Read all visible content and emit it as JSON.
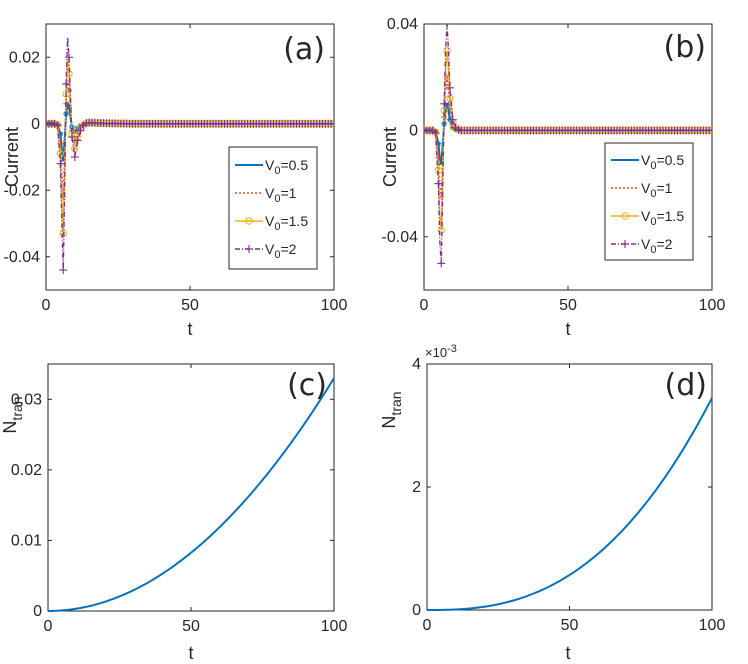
{
  "chart_data": [
    {
      "panel": "(a)",
      "type": "line",
      "xlabel": "t",
      "ylabel": "Current",
      "xlim": [
        0,
        100
      ],
      "ylim": [
        -0.05,
        0.03
      ],
      "xticks": [
        0,
        50,
        100
      ],
      "yticks": [
        -0.04,
        -0.02,
        0,
        0.02
      ],
      "xtick_labels": [
        "0",
        "50",
        "100"
      ],
      "ytick_labels": [
        "-0.04",
        "-0.02",
        "0",
        "0.02"
      ],
      "legend": {
        "position": "right",
        "entries": [
          {
            "prefix": "V",
            "sub": "0",
            "suffix": "=0.5"
          },
          {
            "prefix": "V",
            "sub": "0",
            "suffix": "=1"
          },
          {
            "prefix": "V",
            "sub": "0",
            "suffix": "=1.5"
          },
          {
            "prefix": "V",
            "sub": "0",
            "suffix": "=2"
          }
        ]
      },
      "series": [
        {
          "name": "V0=0.5",
          "amplitude": 0.25
        },
        {
          "name": "V0=1",
          "amplitude": 0.5
        },
        {
          "name": "V0=1.5",
          "amplitude": 0.75
        },
        {
          "name": "V0=2",
          "amplitude": 1.0
        }
      ],
      "x": [
        0,
        1,
        2,
        3,
        4,
        5,
        5.5,
        6,
        6.5,
        7,
        7.5,
        8,
        9,
        10,
        11,
        12,
        13,
        14,
        15,
        20,
        30,
        40,
        50,
        60,
        70,
        80,
        90,
        100
      ],
      "base_y": [
        0,
        0,
        0,
        0,
        -0.0005,
        -0.012,
        -0.03,
        -0.044,
        -0.018,
        0.012,
        0.026,
        0.02,
        -0.004,
        -0.01,
        -0.005,
        -0.002,
        -0.0005,
        0.0002,
        0.0004,
        0.0002,
        0,
        0,
        0,
        0,
        0,
        0,
        0,
        0
      ]
    },
    {
      "panel": "(b)",
      "type": "line",
      "xlabel": "t",
      "ylabel": "Current",
      "xlim": [
        0,
        100
      ],
      "ylim": [
        -0.06,
        0.04
      ],
      "xticks": [
        0,
        50,
        100
      ],
      "yticks": [
        -0.04,
        0,
        0.04
      ],
      "xtick_labels": [
        "0",
        "50",
        "100"
      ],
      "ytick_labels": [
        "-0.04",
        "0",
        "0.04"
      ],
      "legend": {
        "position": "right",
        "entries": [
          {
            "prefix": "V",
            "sub": "0",
            "suffix": "=0.5"
          },
          {
            "prefix": "V",
            "sub": "0",
            "suffix": "=1"
          },
          {
            "prefix": "V",
            "sub": "0",
            "suffix": "=1.5"
          },
          {
            "prefix": "V",
            "sub": "0",
            "suffix": "=2"
          }
        ]
      },
      "series": [
        {
          "name": "V0=0.5",
          "amplitude": 0.25
        },
        {
          "name": "V0=1",
          "amplitude": 0.5
        },
        {
          "name": "V0=1.5",
          "amplitude": 0.75
        },
        {
          "name": "V0=2",
          "amplitude": 1.0
        }
      ],
      "x": [
        0,
        1,
        2,
        3,
        4,
        5,
        5.5,
        6,
        6.5,
        7,
        7.5,
        8,
        8.5,
        9,
        10,
        11,
        12,
        13,
        14,
        15,
        20,
        30,
        40,
        50,
        60,
        70,
        80,
        90,
        100
      ],
      "base_y": [
        0,
        0,
        0,
        0,
        -0.001,
        -0.02,
        -0.042,
        -0.05,
        -0.022,
        0.01,
        0.03,
        0.04,
        0.03,
        0.016,
        0.004,
        0.001,
        0.0003,
        0,
        0,
        0,
        0,
        0,
        0,
        0,
        0,
        0,
        0,
        0,
        0
      ]
    },
    {
      "panel": "(c)",
      "type": "line",
      "xlabel": "t",
      "ylabel": "N",
      "ylabel_sub": "tran",
      "xlim": [
        0,
        100
      ],
      "ylim": [
        0,
        0.035
      ],
      "xticks": [
        0,
        50,
        100
      ],
      "yticks": [
        0,
        0.01,
        0.02,
        0.03
      ],
      "xtick_labels": [
        "0",
        "50",
        "100"
      ],
      "ytick_labels": [
        "0",
        "0.01",
        "0.02",
        "0.03"
      ],
      "series": [
        {
          "name": "N_tran",
          "y_end": 0.033,
          "exponent": 2
        }
      ]
    },
    {
      "panel": "(d)",
      "type": "line",
      "xlabel": "t",
      "ylabel": "N",
      "ylabel_sub": "tran",
      "xlim": [
        0,
        100
      ],
      "ylim": [
        0,
        0.004
      ],
      "xticks": [
        0,
        50,
        100
      ],
      "yticks": [
        0,
        0.002,
        0.004
      ],
      "xtick_labels": [
        "0",
        "50",
        "100"
      ],
      "ytick_labels": [
        "0",
        "2",
        "4"
      ],
      "exponent_label": {
        "base": "×10",
        "power": "-3"
      },
      "series": [
        {
          "name": "N_tran",
          "y_end": 0.00345,
          "exponent": 2.6
        }
      ]
    }
  ],
  "colors": {
    "series": [
      "#0072BD",
      "#D95319",
      "#EDB120",
      "#7E2F8E"
    ],
    "axis": "#262626"
  }
}
